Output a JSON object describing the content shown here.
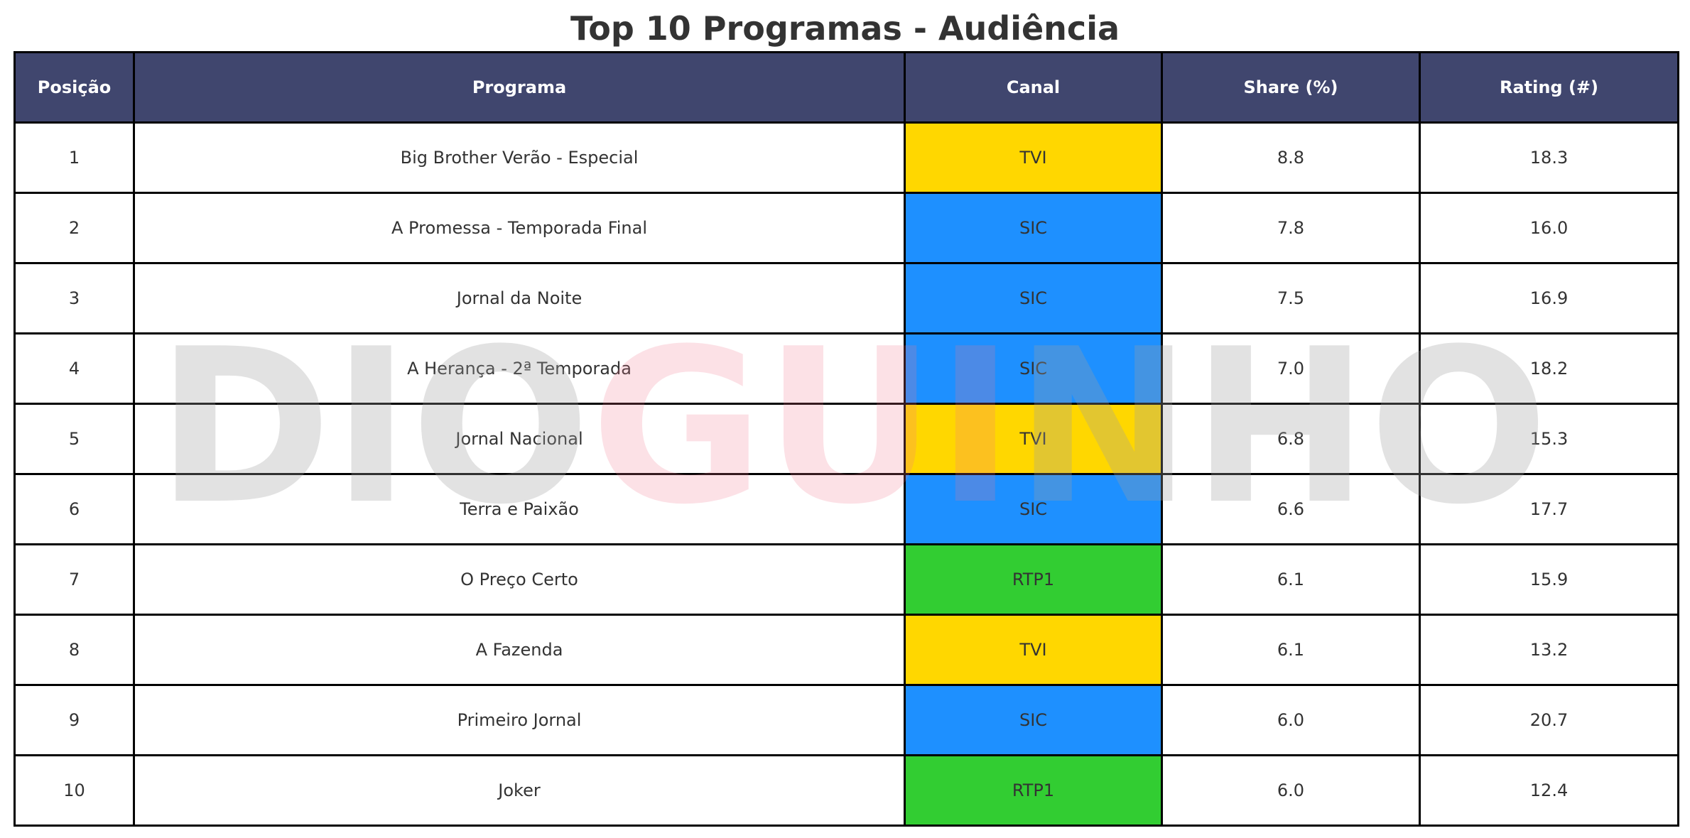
{
  "chart_data": {
    "type": "table",
    "title": "Top 10 Programas - Audiência",
    "columns": [
      "Posição",
      "Programa",
      "Canal",
      "Share (%)",
      "Rating (#)"
    ],
    "rows": [
      [
        "1",
        "Big Brother Verão - Especial",
        "TVI",
        "8.8",
        "18.3"
      ],
      [
        "2",
        "A Promessa - Temporada Final",
        "SIC",
        "7.8",
        "16.0"
      ],
      [
        "3",
        "Jornal da Noite",
        "SIC",
        "7.5",
        "16.9"
      ],
      [
        "4",
        "A Herança - 2ª Temporada",
        "SIC",
        "7.0",
        "18.2"
      ],
      [
        "5",
        "Jornal Nacional",
        "TVI",
        "6.8",
        "15.3"
      ],
      [
        "6",
        "Terra e Paixão",
        "SIC",
        "6.6",
        "17.7"
      ],
      [
        "7",
        "O Preço Certo",
        "RTP1",
        "6.1",
        "15.9"
      ],
      [
        "8",
        "A Fazenda",
        "TVI",
        "6.1",
        "13.2"
      ],
      [
        "9",
        "Primeiro Jornal",
        "SIC",
        "6.0",
        "20.7"
      ],
      [
        "10",
        "Joker",
        "RTP1",
        "6.0",
        "12.4"
      ]
    ]
  },
  "colors": {
    "header_bg": "#40466e",
    "header_text": "#ffffff",
    "channels": {
      "TVI": "#ffd700",
      "SIC": "#1e90ff",
      "RTP1": "#32cd32"
    }
  },
  "watermark": {
    "text_part1": "DIO",
    "text_part2": "GUI",
    "text_part3": "NHO"
  }
}
